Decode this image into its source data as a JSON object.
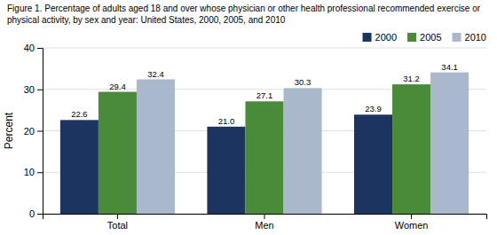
{
  "chart_data": {
    "type": "bar",
    "title": "Figure 1. Percentage of adults aged 18 and over whose physician or other health professional recommended exercise or\nphysical activity, by sex and year: United States, 2000, 2005, and 2010",
    "y_label": "Percent",
    "categories": [
      "Total",
      "Men",
      "Women"
    ],
    "series": [
      {
        "name": "2000",
        "color": "#1b3560",
        "values": [
          22.6,
          21.0,
          23.9
        ],
        "value_labels": [
          "22.6",
          "21.0",
          "23.9"
        ]
      },
      {
        "name": "2005",
        "color": "#4a8b3a",
        "values": [
          29.4,
          27.1,
          31.2
        ]
      },
      {
        "name": "2010",
        "color": "#a9b8ca",
        "values": [
          32.4,
          30.3,
          34.1
        ]
      }
    ],
    "ylim": [
      0,
      40
    ],
    "yticks": [
      0,
      10,
      20,
      30,
      40
    ],
    "grid": true,
    "legend": "upper right",
    "data_labels": true
  }
}
